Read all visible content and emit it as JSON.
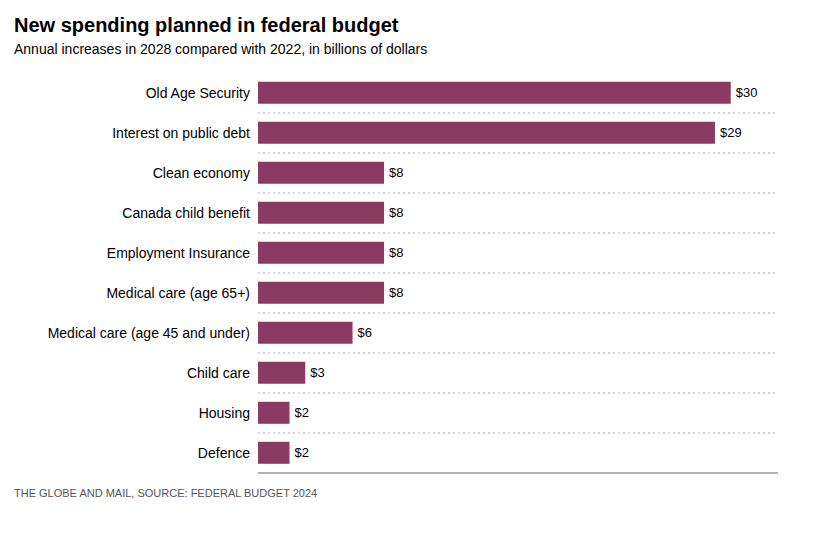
{
  "chart_data": {
    "type": "bar",
    "orientation": "horizontal",
    "title": "New spending planned in federal budget",
    "subtitle": "Annual increases in 2028 compared with 2022, in billions of dollars",
    "annotations": [
      "THE GLOBE AND MAIL, SOURCE: FEDERAL BUDGET 2024"
    ],
    "categories": [
      "Defence",
      "Housing",
      "Child care",
      "Medical care (age 45 and under)",
      "Medical care (age 65+)",
      "Employment Insurance",
      "Canada child benefit",
      "Clean economy",
      "Interest on public debt",
      "Old Age Security"
    ],
    "values": [
      2,
      2,
      3,
      6,
      8,
      8,
      8,
      8,
      29,
      30
    ],
    "value_labels": [
      "$2",
      "$2",
      "$3",
      "$6",
      "$8",
      "$8",
      "$8",
      "$8",
      "$29",
      "$30"
    ],
    "data_labels": true,
    "color": "#8B3A62",
    "xlim": [
      0,
      33
    ],
    "grid": true,
    "tick_labels": "y"
  }
}
